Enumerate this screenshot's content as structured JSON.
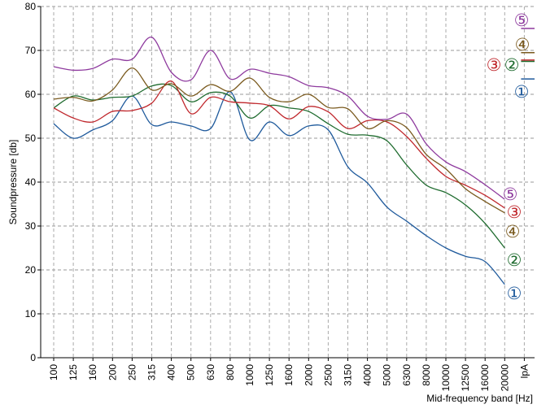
{
  "chart_data": {
    "type": "line",
    "x_label": "Mid-frequency band [Hz]",
    "y_label": "Soundpressure [db]",
    "categories": [
      "100",
      "125",
      "160",
      "200",
      "250",
      "315",
      "400",
      "500",
      "630",
      "800",
      "1000",
      "1250",
      "1600",
      "2000",
      "2500",
      "3150",
      "4000",
      "5000",
      "6300",
      "8000",
      "10000",
      "12500",
      "16000",
      "20000",
      "lpA"
    ],
    "ylim": [
      0,
      80
    ],
    "yticks": [
      0,
      10,
      20,
      30,
      40,
      50,
      60,
      70,
      80
    ],
    "grid": true,
    "series": [
      {
        "name": "①",
        "color": "#1f5a9c",
        "values": [
          53.3,
          50,
          51.9,
          54,
          59.6,
          53.1,
          53.7,
          52.8,
          52.2,
          60.6,
          49.6,
          53.7,
          50.6,
          52.8,
          51.9,
          43.5,
          39.8,
          34.3,
          31.1,
          27.8,
          25,
          23.1,
          21.9,
          16.7,
          63.5
        ]
      },
      {
        "name": "②",
        "color": "#1e6b2e",
        "values": [
          56.9,
          59.6,
          58.7,
          59.3,
          59.6,
          61.9,
          62,
          58.3,
          60.4,
          59.6,
          54.6,
          57.4,
          56.9,
          56.1,
          53.3,
          50.9,
          50.7,
          49.4,
          43.9,
          39.3,
          37.6,
          34.8,
          30.6,
          25,
          67.5
        ]
      },
      {
        "name": "③",
        "color": "#c0282d",
        "values": [
          56.9,
          54.6,
          53.7,
          56.1,
          56.3,
          58,
          63,
          55.6,
          59.3,
          58.3,
          58,
          57.4,
          54.4,
          57.2,
          56,
          52.2,
          54,
          53.7,
          50.4,
          45.4,
          41.3,
          39.3,
          37,
          34.1,
          67.8
        ]
      },
      {
        "name": "④",
        "color": "#7a5a1e",
        "values": [
          58.9,
          59.3,
          58.5,
          61,
          66,
          61,
          62.4,
          59.6,
          62.2,
          60.7,
          63.7,
          59.3,
          58.3,
          60,
          57,
          56.7,
          52.2,
          54,
          52.4,
          46.3,
          43,
          38.5,
          35.6,
          33,
          69.5
        ]
      },
      {
        "name": "⑤",
        "color": "#8e3a9e",
        "values": [
          66.3,
          65.5,
          65.9,
          68,
          68,
          73,
          65,
          63.3,
          70,
          63.5,
          65.7,
          64.8,
          64,
          62,
          61.5,
          59.6,
          55,
          54.3,
          55.5,
          48.7,
          44.6,
          42.4,
          39.4,
          36.1,
          75
        ]
      }
    ]
  }
}
